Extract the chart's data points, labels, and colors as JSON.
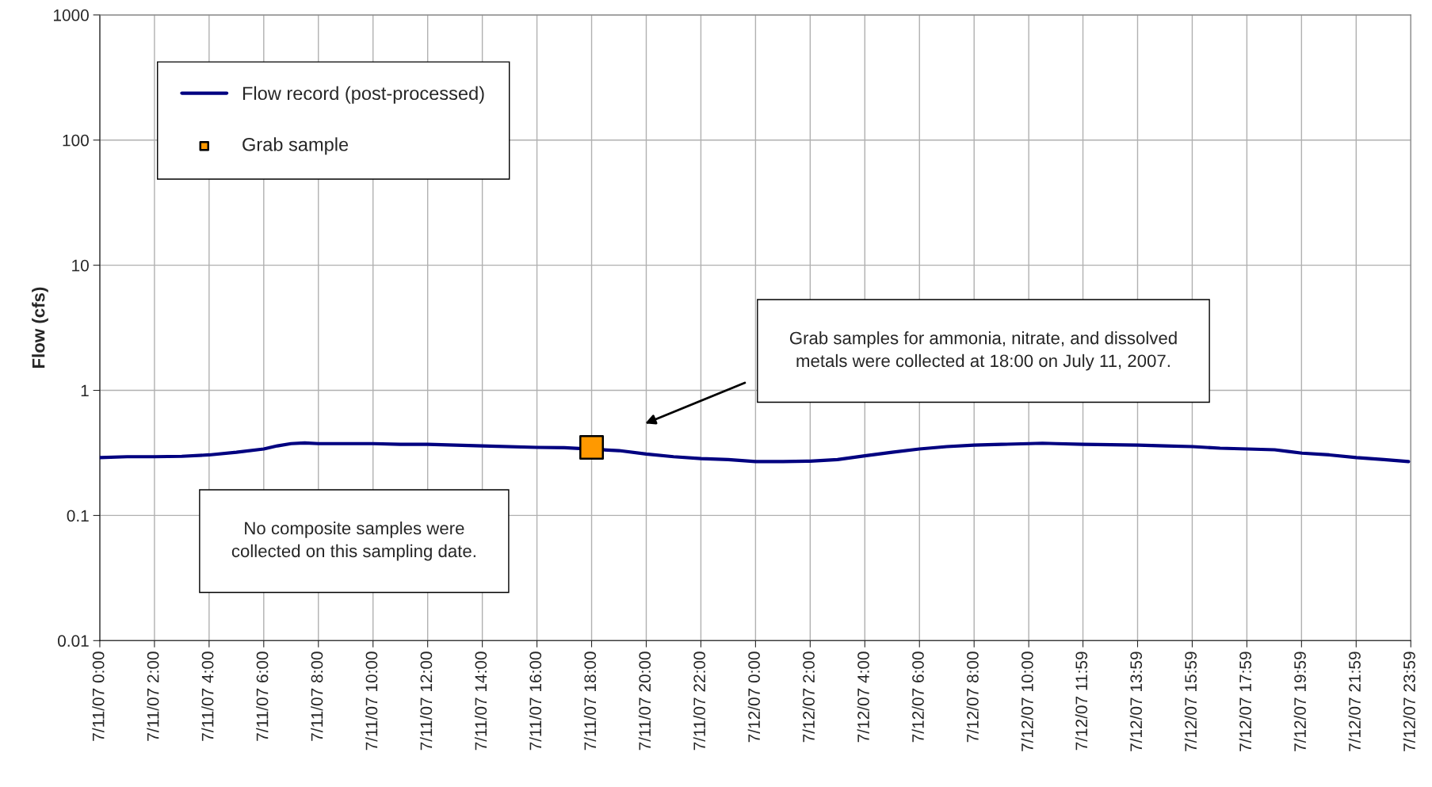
{
  "chart_data": {
    "type": "line",
    "ylabel": "Flow (cfs)",
    "log": "y",
    "grid": true,
    "legend": "top left",
    "xlim": [
      "2007-07-11T00:00",
      "2007-07-12T23:59"
    ],
    "ylim": [
      0.01,
      1000
    ],
    "yticks": [
      0.01,
      0.1,
      1,
      10,
      100,
      1000
    ],
    "xticks": [
      {
        "value": "2007-07-11T00:00",
        "label": "7/11/07 0:00"
      },
      {
        "value": "2007-07-11T02:00",
        "label": "7/11/07 2:00"
      },
      {
        "value": "2007-07-11T04:00",
        "label": "7/11/07 4:00"
      },
      {
        "value": "2007-07-11T06:00",
        "label": "7/11/07 6:00"
      },
      {
        "value": "2007-07-11T08:00",
        "label": "7/11/07 8:00"
      },
      {
        "value": "2007-07-11T10:00",
        "label": "7/11/07 10:00"
      },
      {
        "value": "2007-07-11T12:00",
        "label": "7/11/07 12:00"
      },
      {
        "value": "2007-07-11T14:00",
        "label": "7/11/07 14:00"
      },
      {
        "value": "2007-07-11T16:00",
        "label": "7/11/07 16:00"
      },
      {
        "value": "2007-07-11T18:00",
        "label": "7/11/07 18:00"
      },
      {
        "value": "2007-07-11T20:00",
        "label": "7/11/07 20:00"
      },
      {
        "value": "2007-07-11T22:00",
        "label": "7/11/07 22:00"
      },
      {
        "value": "2007-07-12T00:00",
        "label": "7/12/07 0:00"
      },
      {
        "value": "2007-07-12T02:00",
        "label": "7/12/07 2:00"
      },
      {
        "value": "2007-07-12T04:00",
        "label": "7/12/07 4:00"
      },
      {
        "value": "2007-07-12T06:00",
        "label": "7/12/07 6:00"
      },
      {
        "value": "2007-07-12T08:00",
        "label": "7/12/07 8:00"
      },
      {
        "value": "2007-07-12T10:00",
        "label": "7/12/07 10:00"
      },
      {
        "value": "2007-07-12T11:59",
        "label": "7/12/07 11:59"
      },
      {
        "value": "2007-07-12T13:59",
        "label": "7/12/07 13:59"
      },
      {
        "value": "2007-07-12T15:59",
        "label": "7/12/07 15:59"
      },
      {
        "value": "2007-07-12T17:59",
        "label": "7/12/07 17:59"
      },
      {
        "value": "2007-07-12T19:59",
        "label": "7/12/07 19:59"
      },
      {
        "value": "2007-07-12T21:59",
        "label": "7/12/07 21:59"
      },
      {
        "value": "2007-07-12T23:59",
        "label": "7/12/07 23:59"
      }
    ],
    "series": [
      {
        "name": "Flow record (post-processed)",
        "color": "#000080",
        "marker": "none",
        "line_style": "solid",
        "x": [
          "2007-07-11T00:00",
          "2007-07-11T01:00",
          "2007-07-11T02:00",
          "2007-07-11T03:00",
          "2007-07-11T04:00",
          "2007-07-11T05:00",
          "2007-07-11T06:00",
          "2007-07-11T06:30",
          "2007-07-11T07:00",
          "2007-07-11T07:30",
          "2007-07-11T08:00",
          "2007-07-11T10:00",
          "2007-07-11T11:00",
          "2007-07-11T12:00",
          "2007-07-11T14:00",
          "2007-07-11T16:00",
          "2007-07-11T17:00",
          "2007-07-11T19:00",
          "2007-07-11T20:00",
          "2007-07-11T21:00",
          "2007-07-11T22:00",
          "2007-07-11T23:00",
          "2007-07-12T00:00",
          "2007-07-12T01:00",
          "2007-07-12T02:00",
          "2007-07-12T03:00",
          "2007-07-12T04:00",
          "2007-07-12T05:00",
          "2007-07-12T06:00",
          "2007-07-12T07:00",
          "2007-07-12T08:00",
          "2007-07-12T09:00",
          "2007-07-12T10:00",
          "2007-07-12T10:30",
          "2007-07-12T11:00",
          "2007-07-12T12:00",
          "2007-07-12T13:00",
          "2007-07-12T14:00",
          "2007-07-12T15:00",
          "2007-07-12T16:00",
          "2007-07-12T17:00",
          "2007-07-12T18:00",
          "2007-07-12T19:00",
          "2007-07-12T19:30",
          "2007-07-12T20:00",
          "2007-07-12T21:00",
          "2007-07-12T22:00",
          "2007-07-12T23:00",
          "2007-07-12T23:54"
        ],
        "values": [
          0.29,
          0.295,
          0.295,
          0.297,
          0.305,
          0.32,
          0.34,
          0.36,
          0.375,
          0.38,
          0.375,
          0.375,
          0.37,
          0.37,
          0.36,
          0.35,
          0.348,
          0.33,
          0.31,
          0.295,
          0.285,
          0.28,
          0.27,
          0.27,
          0.272,
          0.28,
          0.3,
          0.32,
          0.34,
          0.355,
          0.365,
          0.37,
          0.375,
          0.378,
          0.375,
          0.37,
          0.368,
          0.365,
          0.36,
          0.355,
          0.345,
          0.34,
          0.335,
          0.325,
          0.315,
          0.305,
          0.29,
          0.28,
          0.27
        ]
      },
      {
        "name": "Grab sample",
        "type": "scatter",
        "color": "#ff9900",
        "marker": "square",
        "x": [
          "2007-07-11T18:00"
        ],
        "values": [
          0.35
        ]
      }
    ],
    "annotations": [
      "Grab samples for ammonia, nitrate, and dissolved\nmetals were collected at 18:00 on July 11, 2007.",
      "No composite samples were\ncollected on this sampling date."
    ]
  }
}
